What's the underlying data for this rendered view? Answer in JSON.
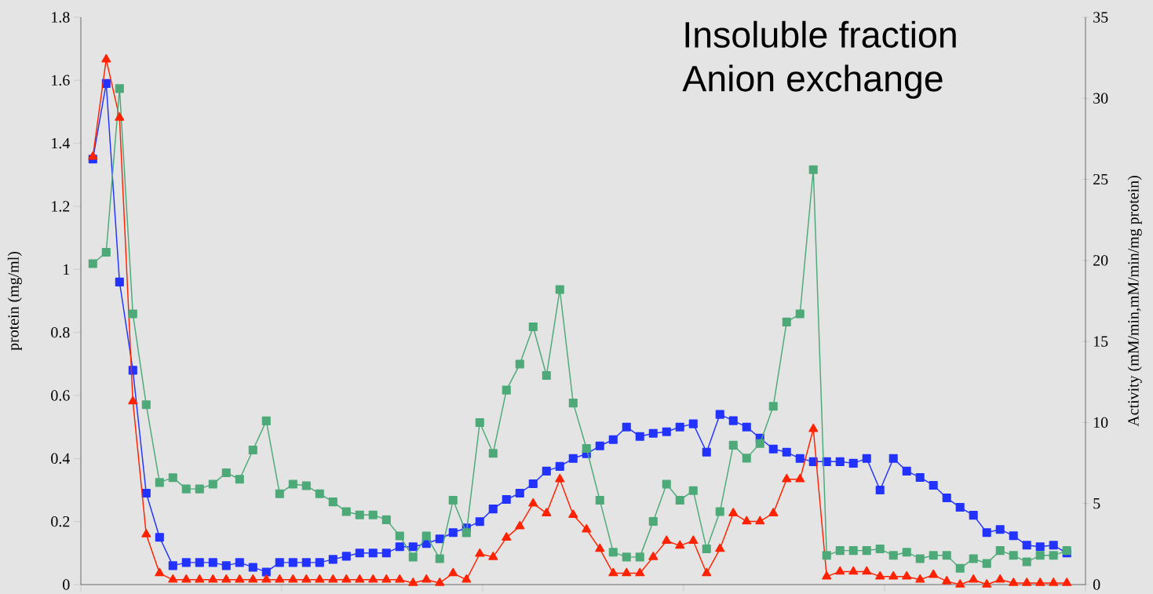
{
  "chart_data": {
    "type": "line",
    "title": "Insoluble fraction",
    "subtitle": "Anion exchange",
    "ylabel": "protein  (mg/ml)",
    "y2label": "Activity  (mM/min,mM/min/mg  protein)",
    "categories": [
      null,
      null,
      null,
      null,
      null,
      null,
      null,
      null,
      null,
      null,
      null,
      null,
      null,
      null,
      null,
      null,
      null,
      null,
      null,
      null,
      null,
      null,
      null,
      null,
      null,
      null,
      null,
      null,
      null,
      null,
      null,
      null,
      null,
      null,
      null,
      null,
      null,
      null,
      null,
      null,
      null,
      null,
      null,
      null,
      null,
      null,
      null,
      null,
      null,
      null,
      null,
      null,
      null,
      null,
      null,
      null,
      null,
      null,
      null,
      null,
      null,
      null,
      null,
      null,
      null,
      null,
      null,
      null,
      null,
      null,
      null,
      null,
      null,
      null
    ],
    "ylim": [
      0,
      1.8
    ],
    "yticks": [
      0,
      0.2,
      0.4,
      0.6,
      0.8,
      1,
      1.2,
      1.4,
      1.6,
      1.8
    ],
    "y2lim": [
      0,
      35
    ],
    "y2ticks": [
      0,
      5,
      10,
      15,
      20,
      25,
      30,
      35
    ],
    "line_style": "solid",
    "series": [
      {
        "color": "#2233ff",
        "marker": "square",
        "axis": "y",
        "values": [
          1.35,
          1.59,
          0.96,
          0.68,
          0.29,
          0.15,
          0.06,
          0.07,
          0.07,
          0.07,
          0.06,
          0.07,
          0.055,
          0.04,
          0.07,
          0.07,
          0.07,
          0.07,
          0.08,
          0.09,
          0.1,
          0.1,
          0.1,
          0.12,
          0.12,
          0.13,
          0.145,
          0.165,
          0.18,
          0.2,
          0.24,
          0.27,
          0.29,
          0.32,
          0.36,
          0.375,
          0.4,
          0.415,
          0.44,
          0.46,
          0.5,
          0.47,
          0.48,
          0.485,
          0.5,
          0.51,
          0.42,
          0.54,
          0.52,
          0.5,
          0.465,
          0.43,
          0.42,
          0.4,
          0.39,
          0.39,
          0.39,
          0.385,
          0.4,
          0.3,
          0.4,
          0.36,
          0.34,
          0.315,
          0.275,
          0.245,
          0.22,
          0.165,
          0.175,
          0.155,
          0.125,
          0.12,
          0.125,
          0.1
        ]
      },
      {
        "color": "#ff2200",
        "marker": "triangle",
        "axis": "y2",
        "values": [
          26.4,
          32.4,
          28.8,
          11.3,
          3.1,
          0.7,
          0.3,
          0.3,
          0.3,
          0.3,
          0.3,
          0.3,
          0.3,
          0.3,
          0.3,
          0.3,
          0.3,
          0.3,
          0.3,
          0.3,
          0.3,
          0.3,
          0.3,
          0.3,
          0.1,
          0.3,
          0.1,
          0.7,
          0.3,
          1.9,
          1.7,
          2.9,
          3.6,
          5.0,
          4.4,
          6.5,
          4.3,
          3.4,
          2.2,
          0.7,
          0.7,
          0.7,
          1.7,
          2.7,
          2.4,
          2.7,
          0.7,
          2.2,
          4.4,
          3.9,
          3.9,
          4.4,
          6.5,
          6.5,
          9.6,
          0.5,
          0.8,
          0.8,
          0.8,
          0.5,
          0.5,
          0.5,
          0.3,
          0.6,
          0.2,
          0.0,
          0.3,
          0.0,
          0.3,
          0.1,
          0.1,
          0.1,
          0.1,
          0.1
        ]
      },
      {
        "color": "#4daa78",
        "marker": "square",
        "axis": "y2",
        "values": [
          19.8,
          20.5,
          30.6,
          16.7,
          11.1,
          6.3,
          6.6,
          5.9,
          5.9,
          6.2,
          6.9,
          6.5,
          8.3,
          10.1,
          5.6,
          6.2,
          6.1,
          5.6,
          5.1,
          4.5,
          4.3,
          4.3,
          4.0,
          3.0,
          1.7,
          3.0,
          1.6,
          5.2,
          3.2,
          10.0,
          8.1,
          12.0,
          13.6,
          15.9,
          12.9,
          18.2,
          11.2,
          8.4,
          5.2,
          2.0,
          1.7,
          1.7,
          3.9,
          6.2,
          5.2,
          5.8,
          2.2,
          4.5,
          8.6,
          7.8,
          8.7,
          11.0,
          16.2,
          16.7,
          25.6,
          1.8,
          2.1,
          2.1,
          2.1,
          2.2,
          1.8,
          2.0,
          1.6,
          1.8,
          1.8,
          1.0,
          1.6,
          1.3,
          2.1,
          1.8,
          1.4,
          1.8,
          1.8,
          2.1
        ]
      }
    ]
  }
}
